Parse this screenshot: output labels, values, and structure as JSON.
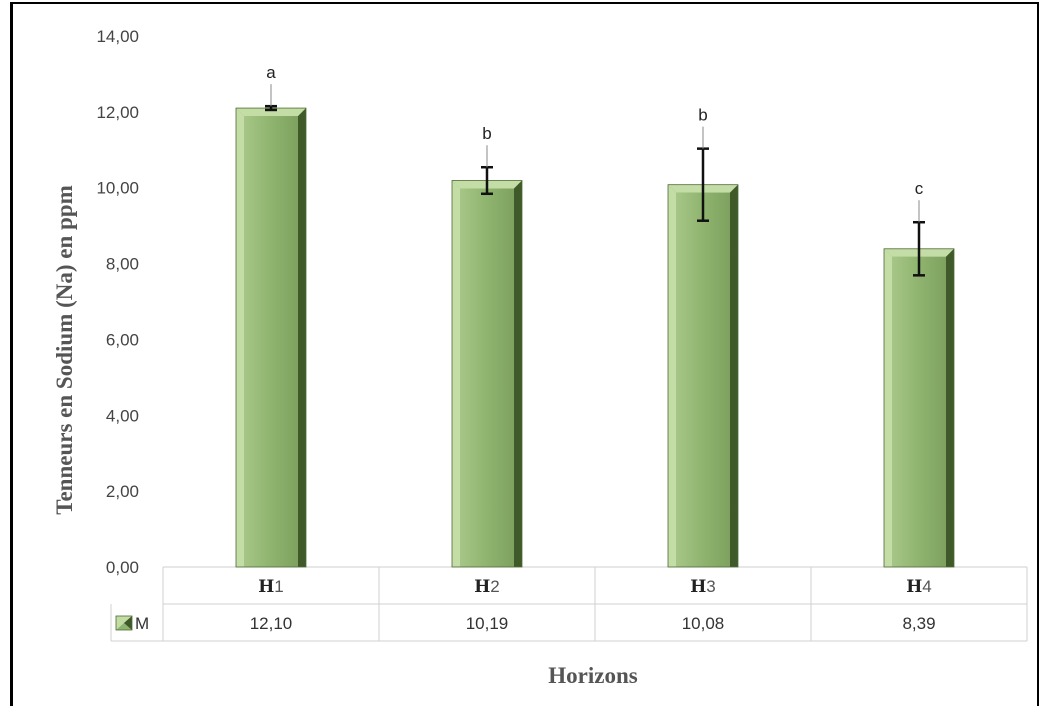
{
  "chart_data": {
    "type": "bar",
    "title": "",
    "xlabel": "Horizons",
    "ylabel": "Tenneurs en Sodium (Na) en ppm",
    "ylim": [
      0,
      14
    ],
    "yticks": [
      "0,00",
      "2,00",
      "4,00",
      "6,00",
      "8,00",
      "10,00",
      "12,00",
      "14,00"
    ],
    "categories": [
      {
        "prefix": "H",
        "num": "1"
      },
      {
        "prefix": "H",
        "num": "2"
      },
      {
        "prefix": "H",
        "num": "3"
      },
      {
        "prefix": "H",
        "num": "4"
      }
    ],
    "series": [
      {
        "name": "M",
        "values": [
          12.1,
          10.19,
          10.08,
          8.39
        ],
        "value_labels": [
          "12,10",
          "10,19",
          "10,08",
          "8,39"
        ],
        "error": [
          0.05,
          0.35,
          0.95,
          0.7
        ],
        "significance": [
          "a",
          "b",
          "b",
          "c"
        ]
      }
    ],
    "grid": false,
    "legend": "data-table",
    "colors": {
      "bar": "#8fb46f",
      "bar_light": "#c4dca6",
      "bar_dark": "#3f5a28",
      "error_bar": "#111111"
    }
  }
}
